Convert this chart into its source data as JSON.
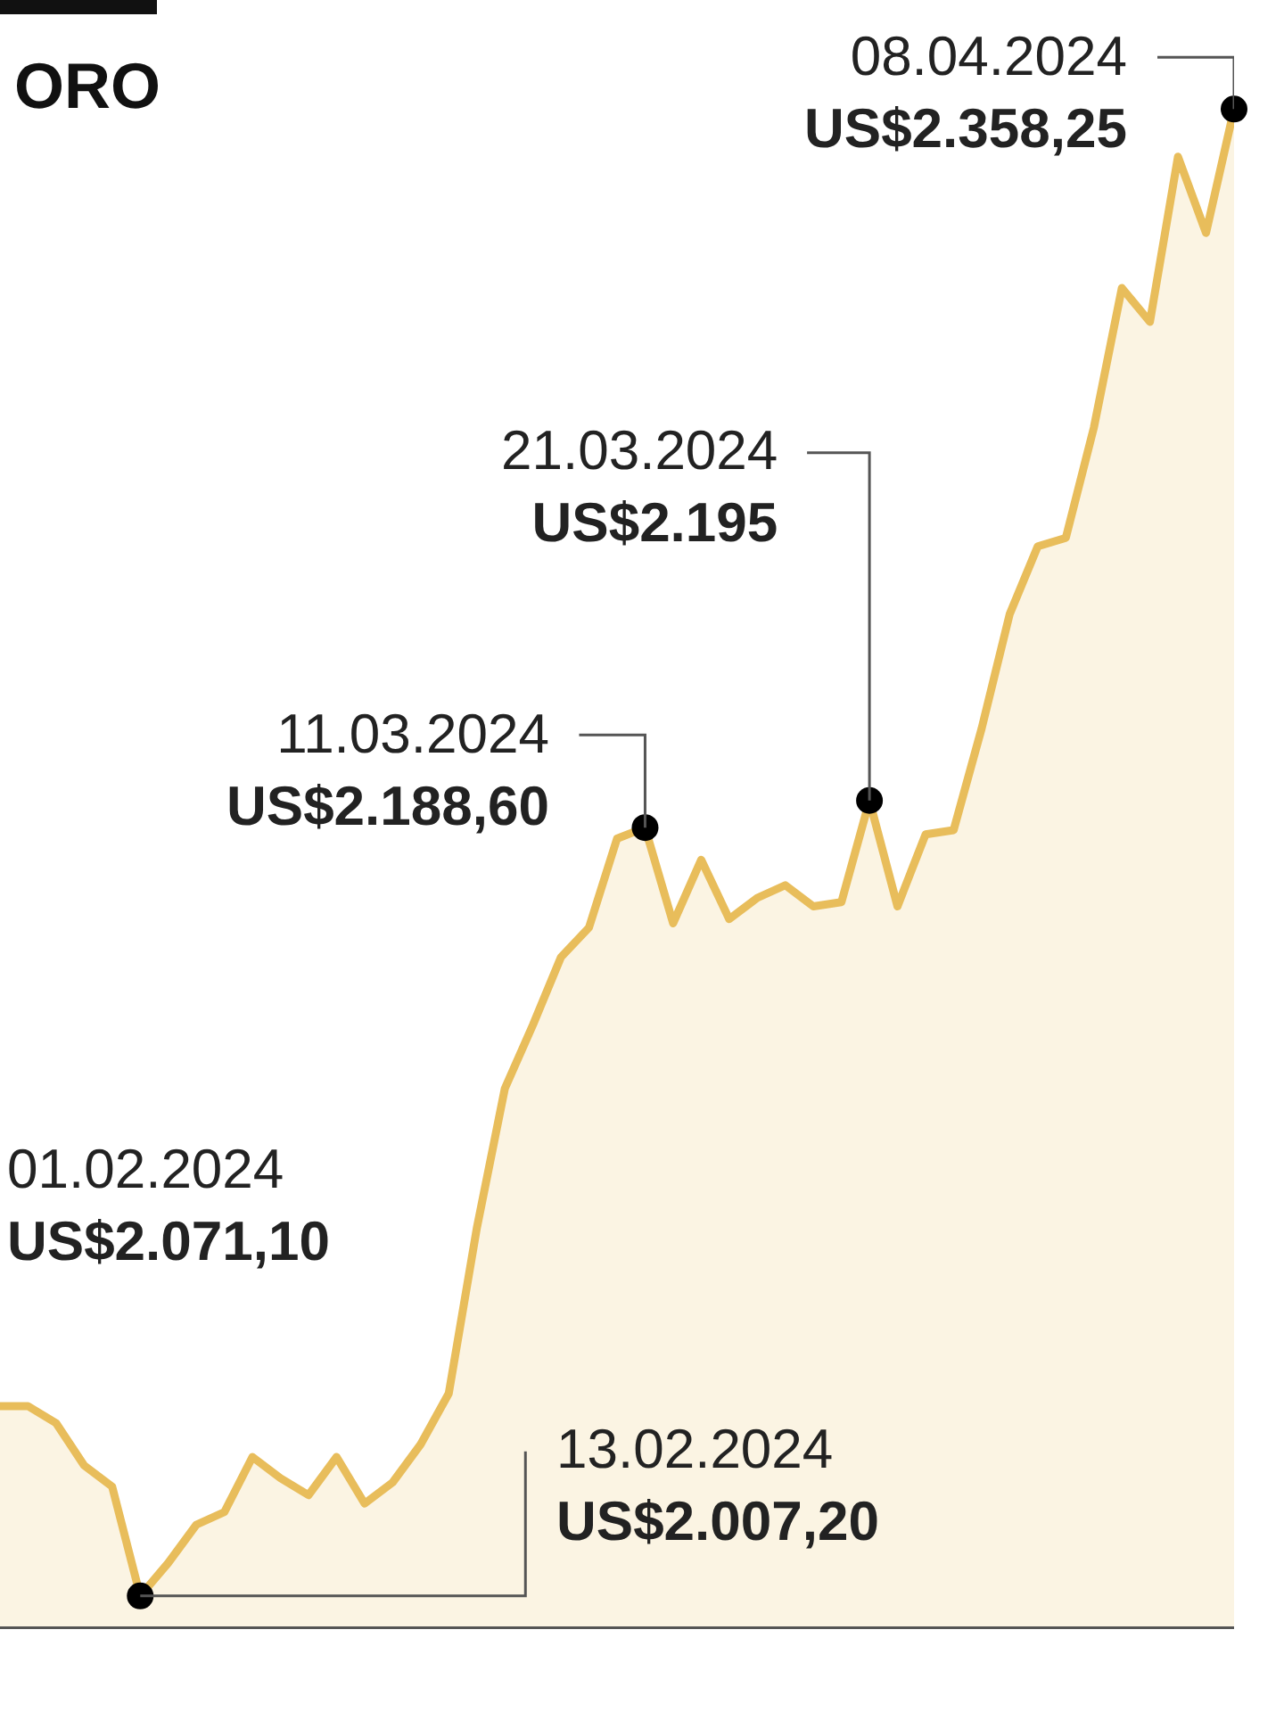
{
  "chart_data": {
    "type": "area",
    "title": "ORO",
    "categories": [
      null,
      null,
      null,
      null,
      null,
      null,
      null,
      null,
      null,
      null,
      null,
      null,
      null,
      null,
      null,
      null,
      null,
      null,
      null,
      null,
      null,
      null,
      null,
      null,
      null,
      null,
      null,
      null,
      null,
      null,
      null,
      null,
      null,
      null,
      null,
      null,
      null,
      null,
      null,
      null,
      null,
      null,
      null,
      null,
      null
    ],
    "values": [
      2052,
      2052,
      2048,
      2038,
      2033,
      2007.2,
      2015,
      2024,
      2027,
      2040,
      2035,
      2031,
      2040,
      2029,
      2034,
      2043,
      2055,
      2094,
      2127,
      2142,
      2158,
      2165,
      2186,
      2188.6,
      2166,
      2181,
      2167,
      2172,
      2175,
      2170,
      2171,
      2195,
      2170,
      2187,
      2188,
      2212,
      2239,
      2255,
      2257,
      2283,
      2316,
      2308,
      2347,
      2329,
      2358.25
    ],
    "value_labels": [
      null,
      null,
      null,
      null,
      null,
      "13.02.2024\nUS$2.007,20",
      null,
      null,
      null,
      null,
      null,
      null,
      null,
      null,
      null,
      null,
      null,
      null,
      null,
      null,
      null,
      null,
      null,
      "11.03.2024\nUS$2.188,60",
      null,
      null,
      null,
      null,
      null,
      null,
      null,
      "21.03.2024\nUS$2.195",
      null,
      null,
      null,
      null,
      null,
      null,
      null,
      null,
      null,
      null,
      null,
      null,
      "08.04.2024\nUS$2.358,25"
    ],
    "color": "#e8bd5b",
    "ylim": [
      2000,
      2384
    ],
    "annotations": [
      "01.02.2024\nUS$2.071,10"
    ]
  }
}
